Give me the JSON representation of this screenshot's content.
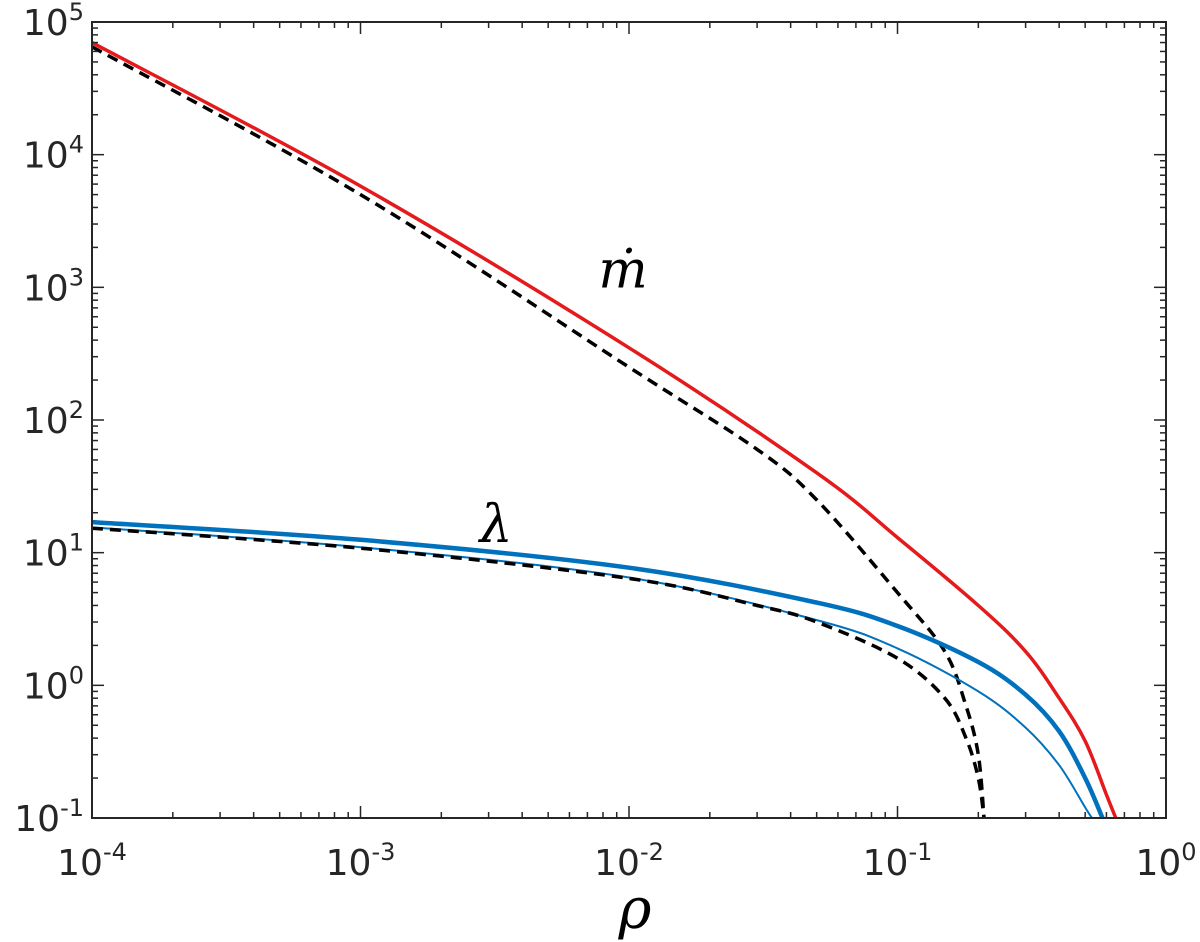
{
  "chart_data": {
    "type": "line",
    "xlabel": "ρ",
    "ylabel": "",
    "xscale": "log",
    "yscale": "log",
    "xlim": [
      0.0001,
      1
    ],
    "ylim": [
      0.1,
      100000
    ],
    "grid": false,
    "x_ticks": [
      {
        "base": "10",
        "exp": "-4"
      },
      {
        "base": "10",
        "exp": "-3"
      },
      {
        "base": "10",
        "exp": "-2"
      },
      {
        "base": "10",
        "exp": "-1"
      },
      {
        "base": "10",
        "exp": "0"
      }
    ],
    "y_ticks": [
      {
        "base": "10",
        "exp": "-1"
      },
      {
        "base": "10",
        "exp": "0"
      },
      {
        "base": "10",
        "exp": "1"
      },
      {
        "base": "10",
        "exp": "2"
      },
      {
        "base": "10",
        "exp": "3"
      },
      {
        "base": "10",
        "exp": "4"
      },
      {
        "base": "10",
        "exp": "5"
      }
    ],
    "annotations": [
      {
        "text": "ṁ",
        "x": 0.0095,
        "y": 1000
      },
      {
        "text": "λ",
        "x": 0.0032,
        "y": 12
      }
    ],
    "series": [
      {
        "color": "#e41a1c",
        "style": "solid",
        "weight": "medium",
        "x": [
          0.0001,
          0.001,
          0.01,
          0.05,
          0.1,
          0.2,
          0.3,
          0.4,
          0.5,
          0.6,
          0.65
        ],
        "y": [
          70000,
          5800,
          350,
          40,
          13,
          4,
          1.8,
          0.8,
          0.38,
          0.15,
          0.1
        ]
      },
      {
        "color": "#000000",
        "style": "dashed",
        "weight": "medium",
        "x": [
          0.0001,
          0.001,
          0.01,
          0.03,
          0.05,
          0.1,
          0.15,
          0.18,
          0.2,
          0.21
        ],
        "y": [
          65000,
          5000,
          250,
          60,
          25,
          5,
          1.8,
          0.7,
          0.3,
          0.1
        ]
      },
      {
        "color": "#0072bd",
        "style": "solid",
        "weight": "thick",
        "x": [
          0.0001,
          0.001,
          0.01,
          0.05,
          0.1,
          0.2,
          0.3,
          0.4,
          0.5,
          0.58
        ],
        "y": [
          17,
          12.5,
          7.7,
          4.2,
          2.8,
          1.5,
          0.85,
          0.45,
          0.2,
          0.1
        ]
      },
      {
        "color": "#0072bd",
        "style": "solid",
        "weight": "thin",
        "x": [
          0.0001,
          0.001,
          0.01,
          0.05,
          0.1,
          0.2,
          0.3,
          0.4,
          0.5,
          0.53
        ],
        "y": [
          15.5,
          11,
          6.5,
          3.1,
          1.9,
          0.9,
          0.48,
          0.25,
          0.12,
          0.1
        ]
      },
      {
        "color": "#000000",
        "style": "dashed",
        "weight": "medium",
        "x": [
          0.0001,
          0.001,
          0.01,
          0.03,
          0.05,
          0.1,
          0.15,
          0.18,
          0.2,
          0.21
        ],
        "y": [
          15.3,
          10.8,
          6.4,
          4.0,
          3.0,
          1.6,
          0.8,
          0.4,
          0.2,
          0.1
        ]
      }
    ]
  }
}
